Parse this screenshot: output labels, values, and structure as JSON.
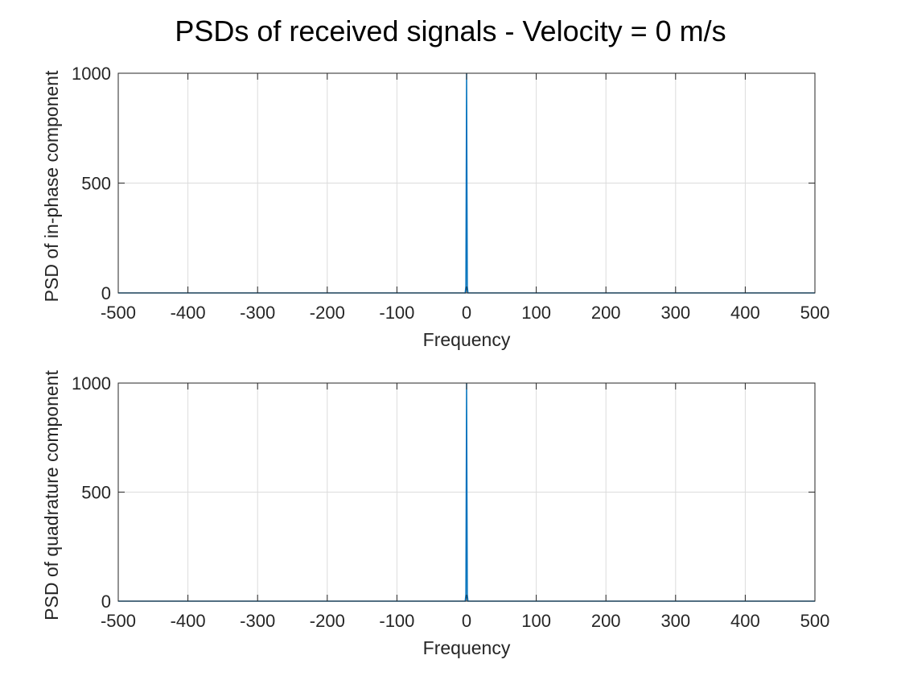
{
  "figure": {
    "title": "PSDs of received signals - Velocity = 0 m/s"
  },
  "colors": {
    "line": "#0072BD",
    "grid": "#dcdcdc",
    "axis": "#262626",
    "background": "#ffffff"
  },
  "chart_data": [
    {
      "type": "line",
      "ylabel": "PSD of in-phase component",
      "xlabel": "Frequency",
      "xlim": [
        -500,
        500
      ],
      "ylim": [
        0,
        1000
      ],
      "xticks": [
        -500,
        -400,
        -300,
        -200,
        -100,
        0,
        100,
        200,
        300,
        400,
        500
      ],
      "yticks": [
        0,
        500,
        1000
      ],
      "xtick_labels": [
        "-500",
        "-400",
        "-300",
        "-200",
        "-100",
        "0",
        "100",
        "200",
        "300",
        "400",
        "500"
      ],
      "ytick_labels": [
        "0",
        "500",
        "1000"
      ],
      "grid": true,
      "series": [
        {
          "x": [
            -500,
            -2,
            -1,
            0,
            1,
            2,
            500
          ],
          "y": [
            0,
            0,
            30,
            1000,
            30,
            0,
            0
          ]
        }
      ]
    },
    {
      "type": "line",
      "ylabel": "PSD of quadrature component",
      "xlabel": "Frequency",
      "xlim": [
        -500,
        500
      ],
      "ylim": [
        0,
        1000
      ],
      "xticks": [
        -500,
        -400,
        -300,
        -200,
        -100,
        0,
        100,
        200,
        300,
        400,
        500
      ],
      "yticks": [
        0,
        500,
        1000
      ],
      "xtick_labels": [
        "-500",
        "-400",
        "-300",
        "-200",
        "-100",
        "0",
        "100",
        "200",
        "300",
        "400",
        "500"
      ],
      "ytick_labels": [
        "0",
        "500",
        "1000"
      ],
      "grid": true,
      "series": [
        {
          "x": [
            -500,
            -2,
            -1,
            0,
            1,
            2,
            500
          ],
          "y": [
            0,
            0,
            30,
            1000,
            30,
            0,
            0
          ]
        }
      ]
    }
  ]
}
